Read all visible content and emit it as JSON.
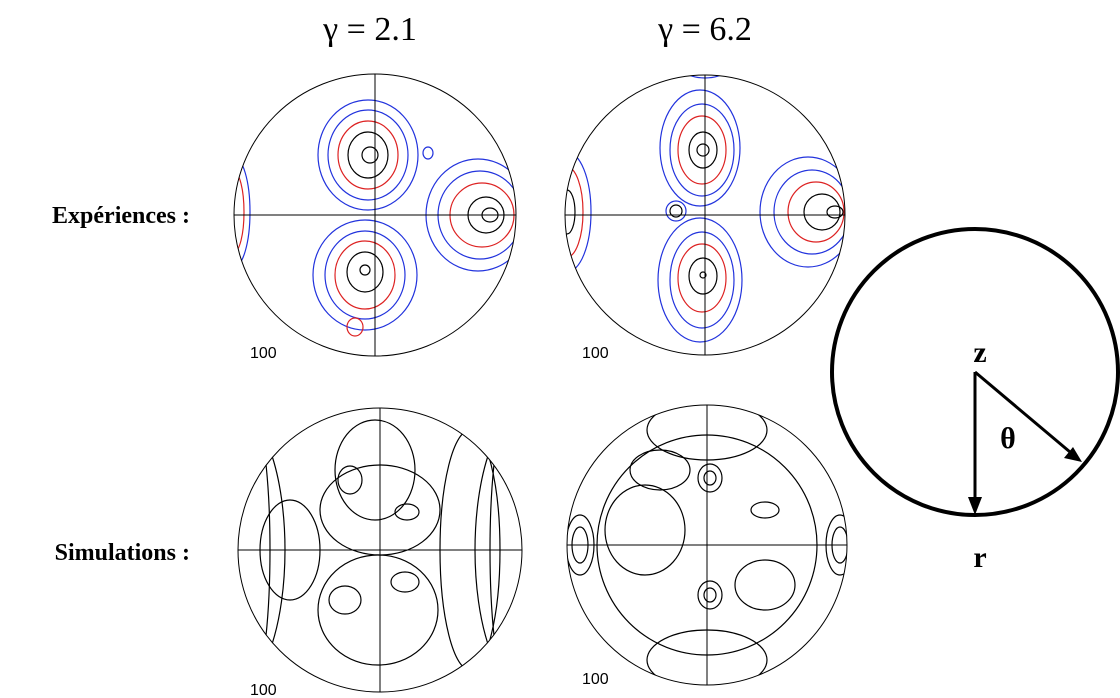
{
  "columns": {
    "left": {
      "title": "γ = 2.1"
    },
    "right": {
      "title": "γ = 6.2"
    }
  },
  "rows": {
    "experiments": {
      "label": "Expériences :"
    },
    "simulations": {
      "label": "Simulations :"
    }
  },
  "pole_figures": [
    {
      "label": "100"
    },
    {
      "label": "100"
    },
    {
      "label": "100"
    },
    {
      "label": "100"
    }
  ],
  "axes_diagram": {
    "z": "z",
    "theta": "θ",
    "r": "r"
  }
}
